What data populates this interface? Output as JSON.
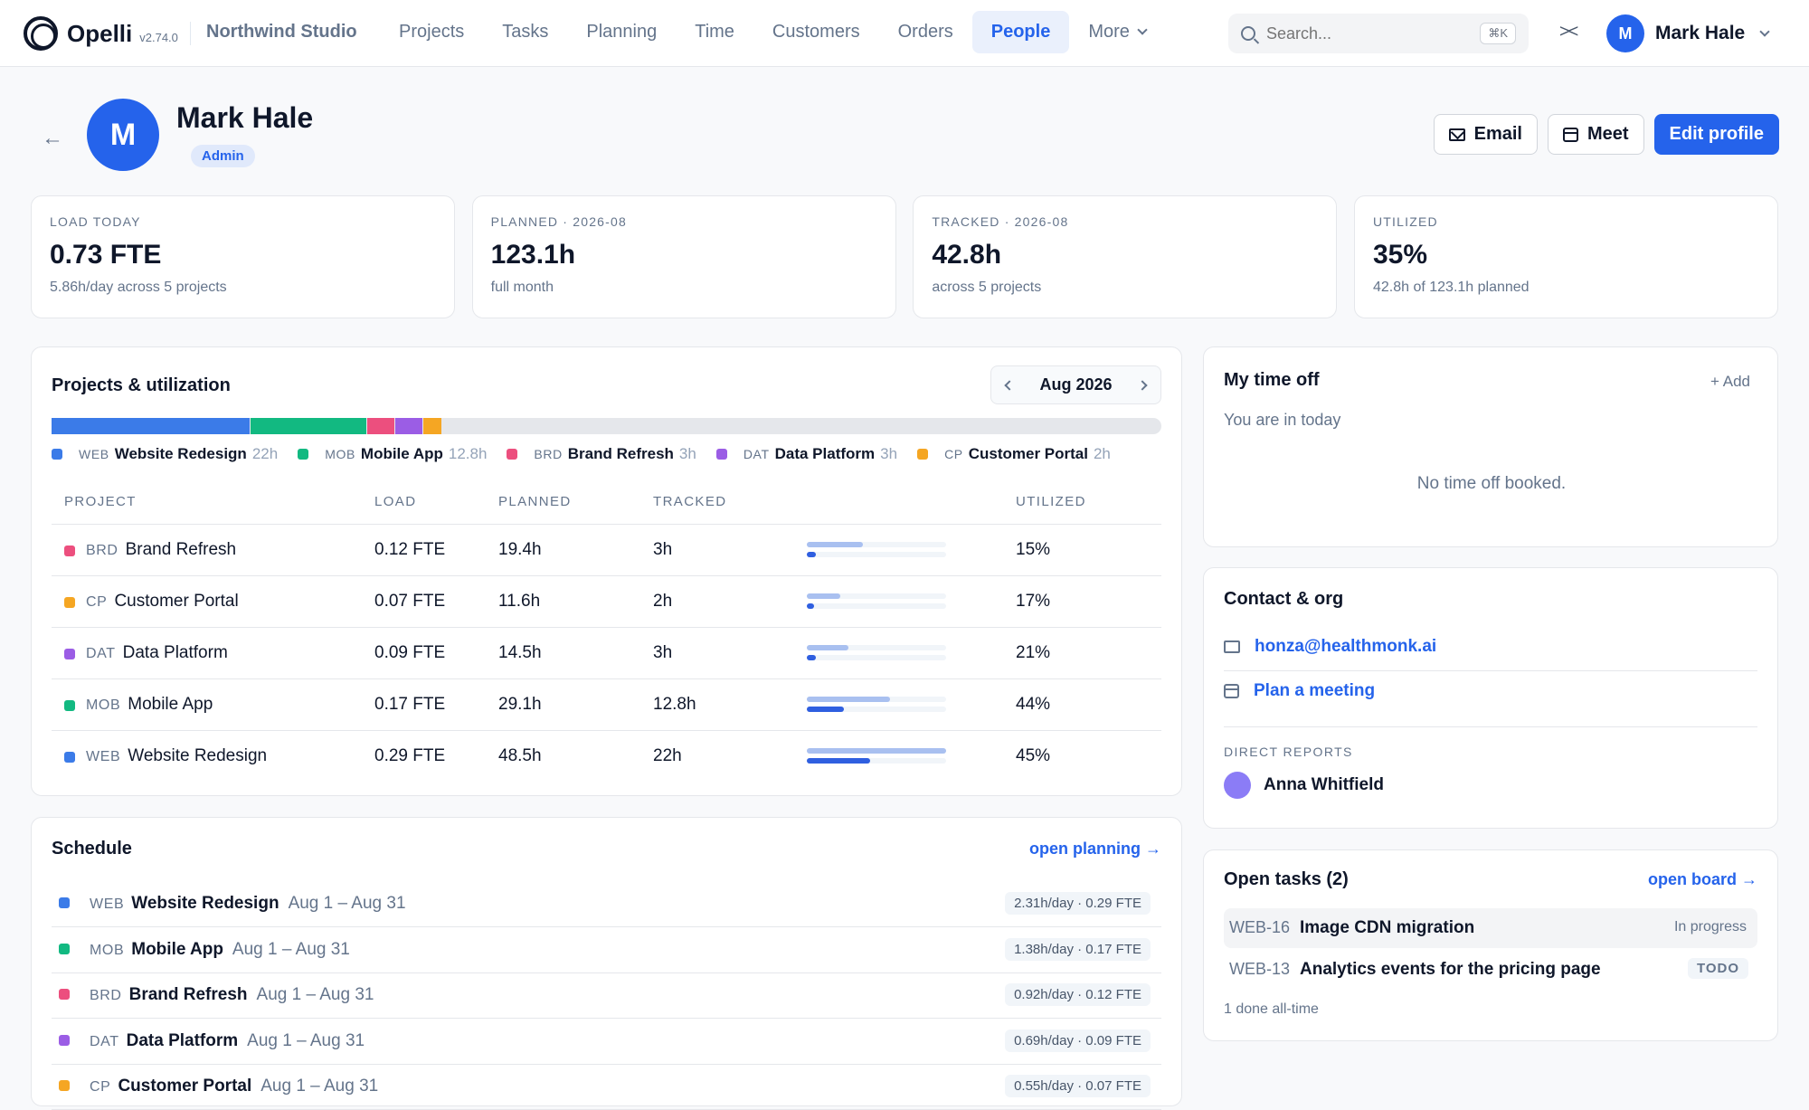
{
  "app": {
    "name": "Opelli",
    "version": "v2.74.0",
    "workspace": "Northwind Studio"
  },
  "nav": {
    "items": [
      "Projects",
      "Tasks",
      "Planning",
      "Time",
      "Customers",
      "Orders",
      "People",
      "More"
    ],
    "active": "People",
    "search_placeholder": "Search...",
    "search_shortcut": "⌘K",
    "collapse_glyph": "><",
    "user": {
      "initial": "M",
      "name": "Mark Hale"
    }
  },
  "person": {
    "initial": "M",
    "name": "Mark Hale",
    "role": "Admin",
    "actions": {
      "email": "Email",
      "meet": "Meet",
      "edit": "Edit profile"
    }
  },
  "stats": [
    {
      "label": "LOAD TODAY",
      "value": "0.73 FTE",
      "sub": "5.86h/day across 5 projects"
    },
    {
      "label": "PLANNED · 2026-08",
      "value": "123.1h",
      "sub": "full month"
    },
    {
      "label": "TRACKED · 2026-08",
      "value": "42.8h",
      "sub": "across 5 projects"
    },
    {
      "label": "UTILIZED",
      "value": "35%",
      "sub": "42.8h of 123.1h planned"
    }
  ],
  "projects_card": {
    "title": "Projects & utilization",
    "month": "Aug 2026",
    "stack": [
      {
        "code": "WEB",
        "name": "Website Redesign",
        "hours_label": "22h",
        "hours": 22,
        "color": "#3b7be8"
      },
      {
        "code": "MOB",
        "name": "Mobile App",
        "hours_label": "12.8h",
        "hours": 12.8,
        "color": "#12b981"
      },
      {
        "code": "BRD",
        "name": "Brand Refresh",
        "hours_label": "3h",
        "hours": 3,
        "color": "#ec4f7e"
      },
      {
        "code": "DAT",
        "name": "Data Platform",
        "hours_label": "3h",
        "hours": 3,
        "color": "#9b5de5"
      },
      {
        "code": "CP",
        "name": "Customer Portal",
        "hours_label": "2h",
        "hours": 2,
        "color": "#f5a623"
      }
    ],
    "stack_total_hours": 123.1,
    "columns": [
      "PROJECT",
      "LOAD",
      "PLANNED",
      "TRACKED",
      "UTILIZED"
    ],
    "rows": [
      {
        "code": "BRD",
        "name": "Brand Refresh",
        "load": "0.12 FTE",
        "planned": "19.4h",
        "tracked": "3h",
        "utilized": "15%",
        "planned_h": 19.4,
        "tracked_h": 3,
        "color": "#ec4f7e"
      },
      {
        "code": "CP",
        "name": "Customer Portal",
        "load": "0.07 FTE",
        "planned": "11.6h",
        "tracked": "2h",
        "utilized": "17%",
        "planned_h": 11.6,
        "tracked_h": 2,
        "color": "#f5a623"
      },
      {
        "code": "DAT",
        "name": "Data Platform",
        "load": "0.09 FTE",
        "planned": "14.5h",
        "tracked": "3h",
        "utilized": "21%",
        "planned_h": 14.5,
        "tracked_h": 3,
        "color": "#9b5de5"
      },
      {
        "code": "MOB",
        "name": "Mobile App",
        "load": "0.17 FTE",
        "planned": "29.1h",
        "tracked": "12.8h",
        "utilized": "44%",
        "planned_h": 29.1,
        "tracked_h": 12.8,
        "color": "#12b981"
      },
      {
        "code": "WEB",
        "name": "Website Redesign",
        "load": "0.29 FTE",
        "planned": "48.5h",
        "tracked": "22h",
        "utilized": "45%",
        "planned_h": 48.5,
        "tracked_h": 22,
        "color": "#3b7be8"
      }
    ],
    "bar_scale_hours": 48.5,
    "bar_colors": {
      "planned": "#a9c0f0",
      "tracked": "#2f5fe0"
    }
  },
  "schedule": {
    "title": "Schedule",
    "link": "open planning →",
    "rows": [
      {
        "code": "WEB",
        "name": "Website Redesign",
        "dates": "Aug 1 – Aug 31",
        "rate": "2.31h/day · 0.29 FTE",
        "color": "#3b7be8"
      },
      {
        "code": "MOB",
        "name": "Mobile App",
        "dates": "Aug 1 – Aug 31",
        "rate": "1.38h/day · 0.17 FTE",
        "color": "#12b981"
      },
      {
        "code": "BRD",
        "name": "Brand Refresh",
        "dates": "Aug 1 – Aug 31",
        "rate": "0.92h/day · 0.12 FTE",
        "color": "#ec4f7e"
      },
      {
        "code": "DAT",
        "name": "Data Platform",
        "dates": "Aug 1 – Aug 31",
        "rate": "0.69h/day · 0.09 FTE",
        "color": "#9b5de5"
      },
      {
        "code": "CP",
        "name": "Customer Portal",
        "dates": "Aug 1 – Aug 31",
        "rate": "0.55h/day · 0.07 FTE",
        "color": "#f5a623"
      }
    ]
  },
  "time_off": {
    "title": "My time off",
    "add": "+ Add",
    "status": "You are in today",
    "empty": "No time off booked."
  },
  "contact": {
    "title": "Contact & org",
    "email": "honza@healthmonk.ai",
    "meeting": "Plan a meeting",
    "reports_label": "DIRECT REPORTS",
    "reports": [
      {
        "name": "Anna Whitfield"
      }
    ]
  },
  "tasks": {
    "title": "Open tasks (2)",
    "link": "open board →",
    "items": [
      {
        "key": "WEB-16",
        "title": "Image CDN migration",
        "status": "In progress"
      },
      {
        "key": "WEB-13",
        "title": "Analytics events for the pricing page",
        "status": "TODO"
      }
    ],
    "footer": "1 done all-time"
  }
}
